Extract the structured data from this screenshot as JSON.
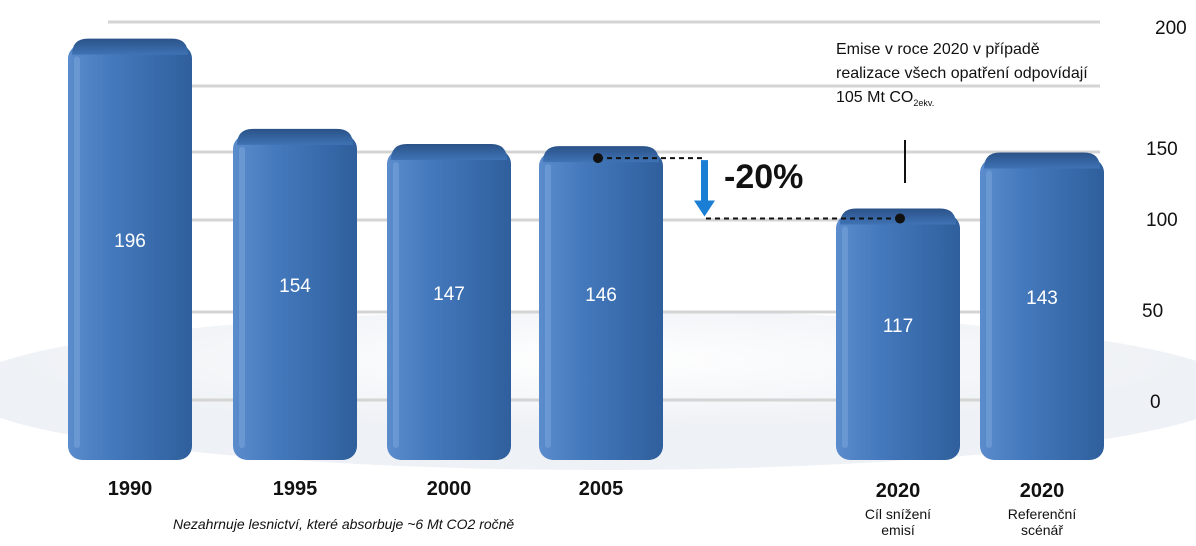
{
  "chart_data": {
    "type": "bar",
    "categories": [
      "1990",
      "1995",
      "2000",
      "2005",
      "2020",
      "2020"
    ],
    "category_sublabels": [
      "",
      "",
      "",
      "",
      "Cíl snížení emisí",
      "Referenční scénář"
    ],
    "values": [
      196,
      154,
      147,
      146,
      117,
      143
    ],
    "value_labels": [
      "196",
      "154",
      "147",
      "146",
      "117",
      "143"
    ],
    "yticks": [
      "0",
      "50",
      "100",
      "150",
      "200"
    ],
    "ylim": [
      0,
      200
    ],
    "grid": true,
    "bar_color": "#3d73b3",
    "annotations": {
      "reduction_label": "-20%",
      "note_line1": "Emise v roce 2020 v případě",
      "note_line2": "realizace všech opatření odpovídají",
      "note_line3_main": "105 Mt CO",
      "note_line3_sub": "2ekv.",
      "arrow_color": "#1a7fd4"
    },
    "footnote": "Nezahrnuje lesnictví, které absorbuje ~6 Mt CO2 ročně"
  }
}
